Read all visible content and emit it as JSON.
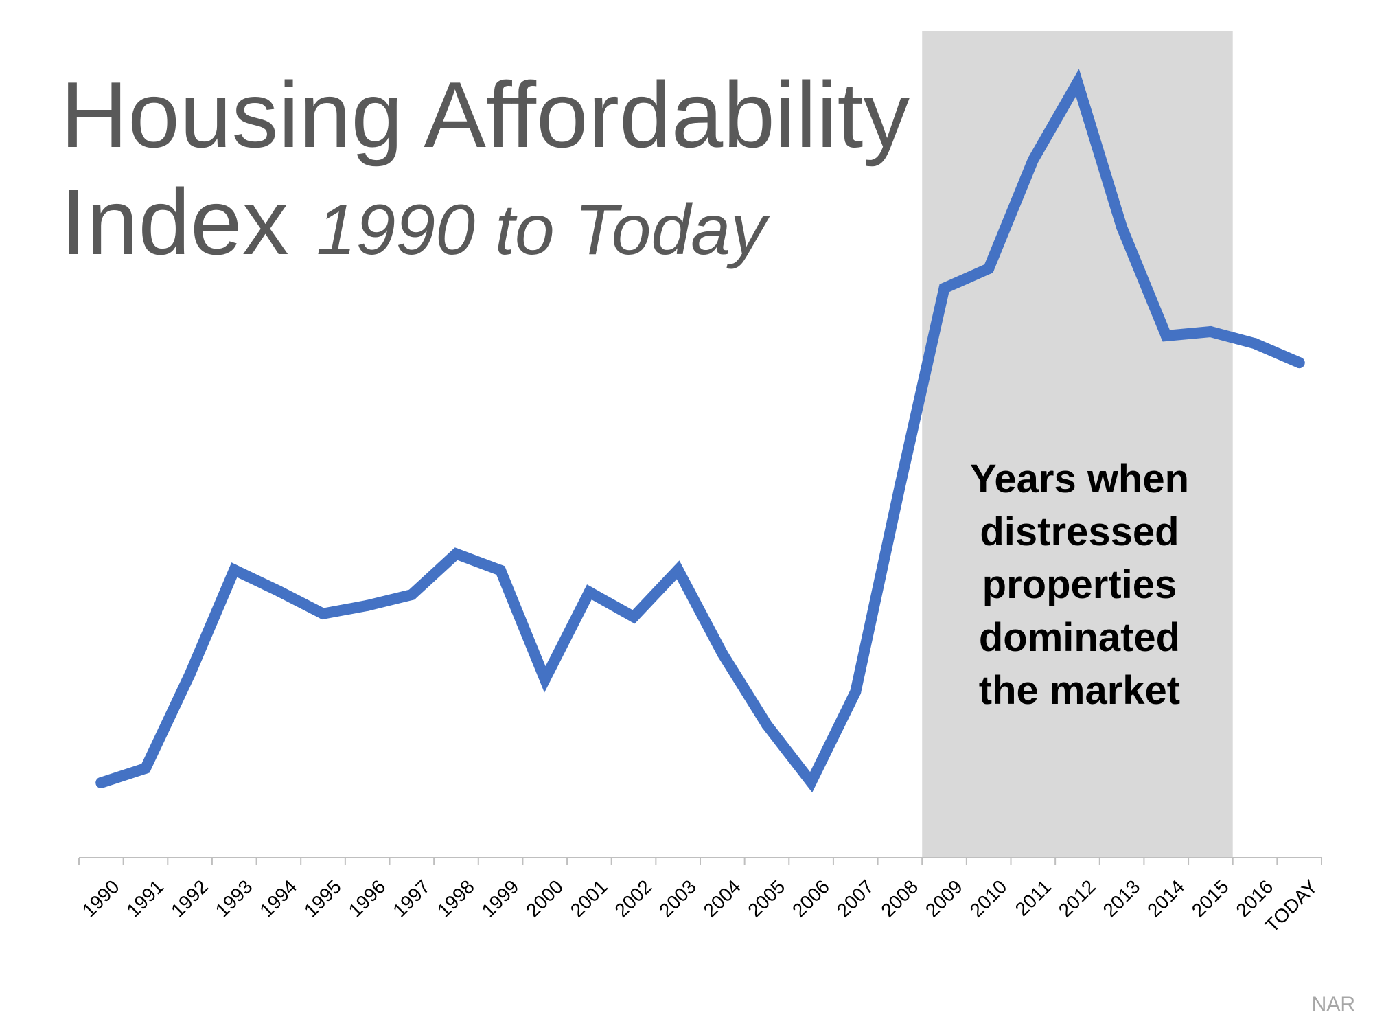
{
  "title": {
    "line1": "Housing Affordability",
    "line2": "Index",
    "subtitle": "1990 to Today"
  },
  "source": "NAR",
  "colors": {
    "line": "#4472c4",
    "shade": "#d9d9d9",
    "title": "#595959",
    "axis": "#bfbfbf",
    "annotation": "#000000",
    "source": "#a6a6a6"
  },
  "chart_data": {
    "type": "line",
    "title": "Housing Affordability Index 1990 to Today",
    "xlabel": "",
    "ylabel": "",
    "categories": [
      "1990",
      "1991",
      "1992",
      "1993",
      "1994",
      "1995",
      "1996",
      "1997",
      "1998",
      "1999",
      "2000",
      "2001",
      "2002",
      "2003",
      "2004",
      "2005",
      "2006",
      "2007",
      "2008",
      "2009",
      "2010",
      "2011",
      "2012",
      "2013",
      "2014",
      "2015",
      "2016",
      "TODAY"
    ],
    "series": [
      {
        "values": [
          109.5,
          112.3,
          130.5,
          150.7,
          146.6,
          142.2,
          143.8,
          145.9,
          153.8,
          150.6,
          129.5,
          146.4,
          141.6,
          150.7,
          134.5,
          120.7,
          109.6,
          127.1,
          166.9,
          205.2,
          209.0,
          230.0,
          245.0,
          217.0,
          196.0,
          196.8,
          194.5,
          190.8
        ]
      }
    ],
    "ylim": [
      95,
      255
    ],
    "y_axis_visible": false,
    "grid": false,
    "legend": "none",
    "highlight": {
      "from": "2009",
      "to": "2015",
      "label_lines": [
        "Years when",
        "distressed",
        "properties",
        "dominated",
        "the market"
      ]
    }
  }
}
